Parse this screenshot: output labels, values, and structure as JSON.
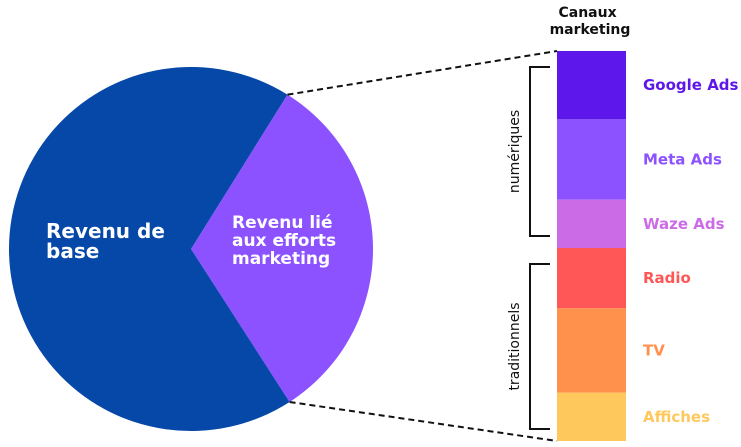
{
  "chart_data": [
    {
      "type": "pie",
      "slices": [
        {
          "label_lines": [
            "Revenu de",
            "base"
          ],
          "value": 68,
          "color": "#0648A8"
        },
        {
          "label_lines": [
            "Revenu lié",
            "aux efforts",
            "marketing"
          ],
          "value": 32,
          "color": "#8C52FF"
        }
      ]
    },
    {
      "type": "bar",
      "stacked": true,
      "title_lines": [
        "Canaux",
        "marketing"
      ],
      "categories": [
        "Google Ads",
        "Meta Ads",
        "Waze Ads",
        "Radio",
        "TV",
        "Affiches"
      ],
      "values": [
        17,
        20,
        12,
        15,
        21,
        12
      ],
      "colors": [
        "#5E17EB",
        "#8C52FF",
        "#CB6CE6",
        "#FF5757",
        "#FF914D",
        "#FFC85C"
      ],
      "groups": [
        {
          "label": "numériques",
          "categories": [
            "Google Ads",
            "Meta Ads",
            "Waze Ads"
          ]
        },
        {
          "label": "traditionnels",
          "categories": [
            "Radio",
            "TV",
            "Affiches"
          ]
        }
      ]
    }
  ]
}
